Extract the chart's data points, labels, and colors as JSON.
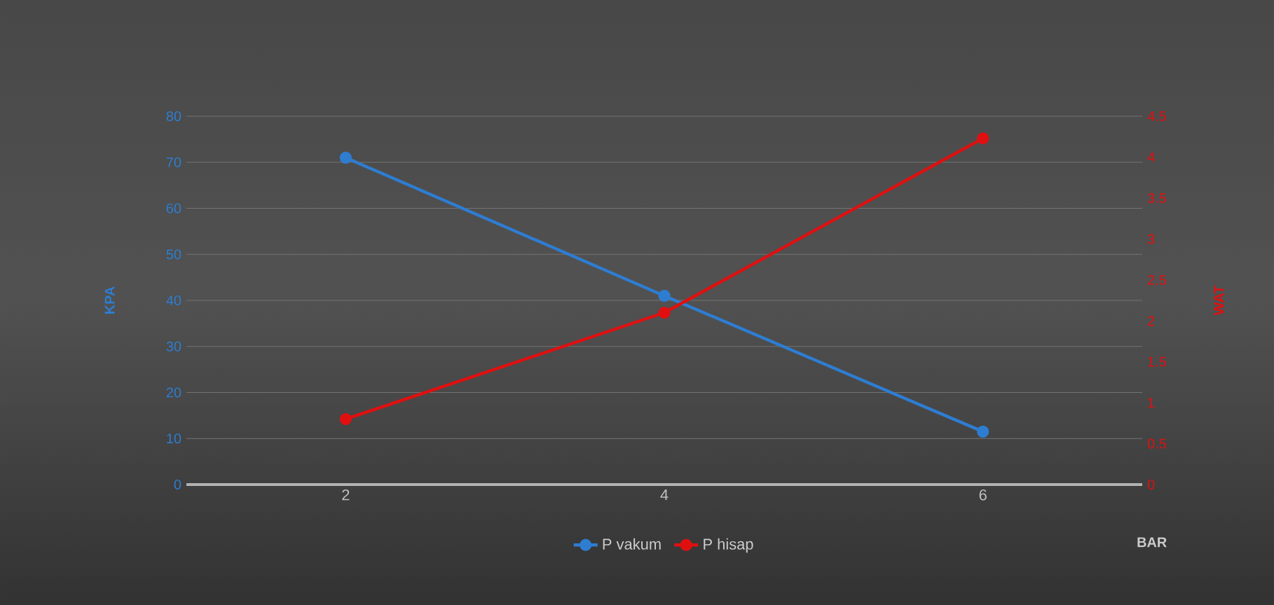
{
  "chart_data": {
    "type": "line",
    "categories": [
      "2",
      "4",
      "6"
    ],
    "xlabel": "BAR",
    "ylabel": "KPA",
    "y2label": "WAT",
    "series": [
      {
        "name": "P vakum",
        "color": "#2e7dd1",
        "values": [
          71,
          41,
          11.5
        ]
      },
      {
        "name": "P hisap",
        "color": "#e01010",
        "values": [
          0.8,
          2.1,
          4.23
        ],
        "axis": "y2"
      }
    ],
    "ylim": [
      0,
      80
    ],
    "yticks": [
      0,
      10,
      20,
      30,
      40,
      50,
      60,
      70,
      80
    ],
    "y2lim": [
      0,
      4.5
    ],
    "y2ticks": [
      0,
      0.5,
      1,
      1.5,
      2,
      2.5,
      3,
      3.5,
      4,
      4.5
    ],
    "grid": "y",
    "legend": "bottom",
    "marker": "circle",
    "line_style": "solid"
  }
}
